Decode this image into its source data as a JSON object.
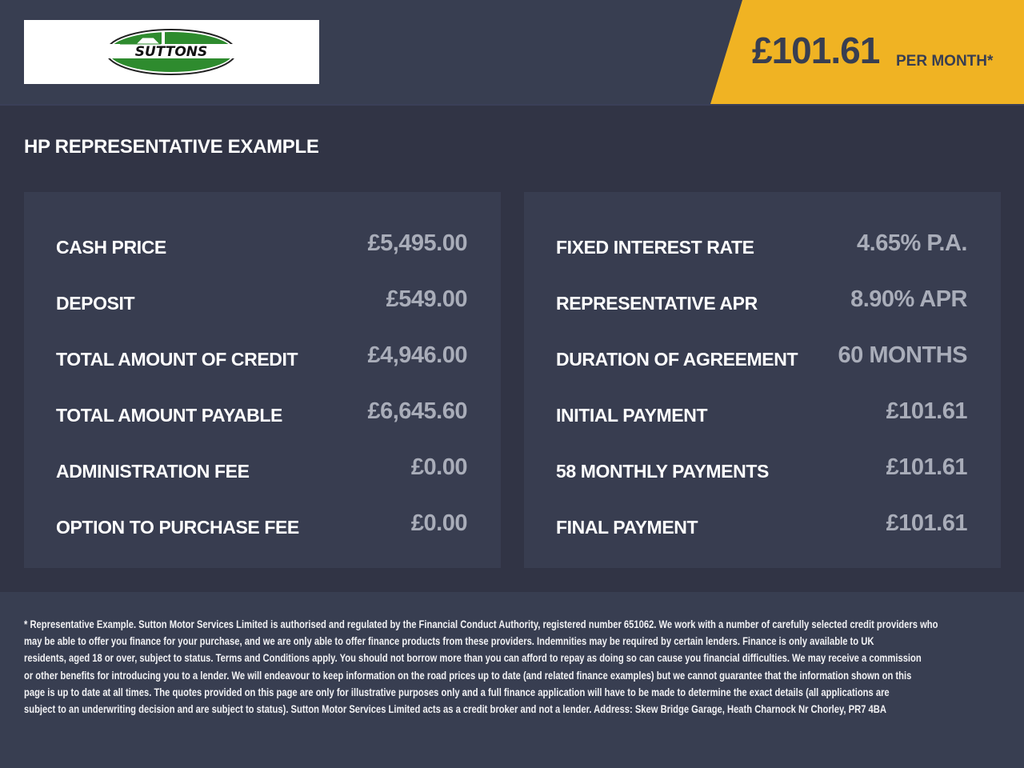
{
  "logo": {
    "text": "SUTTONS",
    "colors": {
      "green": "#2e8b2e",
      "black": "#111111"
    }
  },
  "header": {
    "price": "£101.61",
    "per_month": "PER MONTH*",
    "accent": "#f0b323"
  },
  "title": "HP REPRESENTATIVE EXAMPLE",
  "left_panel": [
    {
      "label": "CASH PRICE",
      "value": "£5,495.00"
    },
    {
      "label": "DEPOSIT",
      "value": "£549.00"
    },
    {
      "label": "TOTAL AMOUNT OF CREDIT",
      "value": "£4,946.00"
    },
    {
      "label": "TOTAL AMOUNT PAYABLE",
      "value": "£6,645.60"
    },
    {
      "label": "ADMINISTRATION FEE",
      "value": "£0.00"
    },
    {
      "label": "OPTION TO PURCHASE FEE",
      "value": "£0.00"
    }
  ],
  "right_panel": [
    {
      "label": "FIXED INTEREST RATE",
      "value": "4.65% P.A."
    },
    {
      "label": "REPRESENTATIVE APR",
      "value": "8.90% APR"
    },
    {
      "label": "DURATION OF AGREEMENT",
      "value": "60 MONTHS"
    },
    {
      "label": "INITIAL PAYMENT",
      "value": "£101.61"
    },
    {
      "label": "58 MONTHLY PAYMENTS",
      "value": "£101.61"
    },
    {
      "label": "FINAL PAYMENT",
      "value": "£101.61"
    }
  ],
  "disclaimer": [
    "* Representative Example. Sutton Motor Services Limited is authorised and regulated by the Financial Conduct Authority, registered number 651062. We work with a number of carefully selected credit providers who",
    "may be able to offer you finance for your purchase, and we are only able to offer finance products from these providers. Indemnities may be required by certain lenders. Finance is only available to UK",
    "residents, aged 18 or over, subject to status. Terms and Conditions apply. You should not borrow more than you can afford to repay as doing so can cause you financial difficulties. We may receive a commission",
    "or other benefits for introducing you to a lender. We will endeavour to keep information on the road prices up to date (and related finance examples) but we cannot guarantee that the information shown on this",
    "page is up to date at all times. The quotes provided on this page are only for illustrative purposes only and a full finance application will have to be made to determine the exact details (all applications are",
    "subject to an underwriting decision and are subject to status). Sutton Motor Services Limited acts as a credit broker and not a lender. Address: Skew Bridge Garage, Heath Charnock Nr Chorley, PR7 4BA"
  ]
}
